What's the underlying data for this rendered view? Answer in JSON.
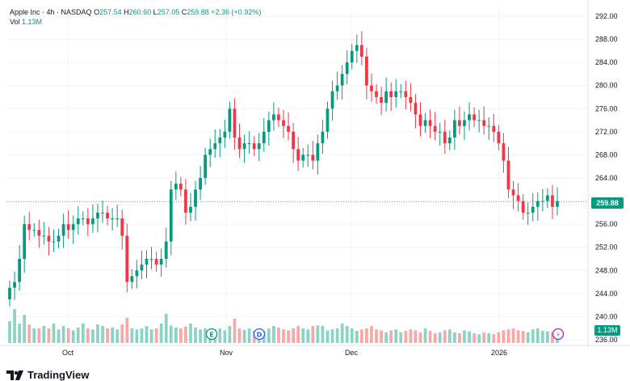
{
  "header": {
    "symbol_line": "Apple Inc · 4h · NASDAQ",
    "open_label": "O",
    "open": "257.54",
    "high_label": "H",
    "high": "260.60",
    "low_label": "L",
    "low": "257.05",
    "close_label": "C",
    "close": "259.88",
    "change": "+2.36 (+0.92%)",
    "vol_label": "Vol",
    "vol_value": "1.13M"
  },
  "price_tag": "259.88",
  "volume_tag": "1.13M",
  "brand": "TradingView",
  "colors": {
    "up": "#089981",
    "down": "#F23645",
    "grid": "#F0F3FA",
    "text": "#131722"
  },
  "event_markers": [
    {
      "letter": "E",
      "name": "earnings-marker-icon"
    },
    {
      "letter": "D",
      "name": "dividend-marker-icon"
    },
    {
      "letter": "⚡",
      "name": "news-flash-icon"
    }
  ],
  "chart_data": {
    "type": "candlestick",
    "title": "Apple Inc · 4h · NASDAQ",
    "y_range": [
      235,
      293
    ],
    "y_ticks": [
      "292.00",
      "288.00",
      "284.00",
      "280.00",
      "276.00",
      "272.00",
      "268.00",
      "264.00",
      "260.00",
      "256.00",
      "252.00",
      "248.00",
      "244.00",
      "240.00",
      "236.00"
    ],
    "x_labels": [
      "Oct",
      "Nov",
      "Dec",
      "2026"
    ],
    "last_price": 259.88,
    "closes": [
      245,
      246,
      250,
      256,
      255,
      255,
      254,
      254,
      253,
      253,
      254,
      256,
      255,
      256,
      257,
      257,
      256,
      257,
      258,
      258,
      257,
      257,
      257,
      254,
      246,
      247,
      248,
      249,
      250,
      250,
      249,
      250,
      253,
      262,
      263,
      262,
      258,
      259,
      262,
      264,
      268,
      269,
      270,
      271,
      272,
      276,
      271,
      269,
      270,
      270,
      269,
      270,
      272,
      274,
      275,
      274,
      273,
      272,
      269,
      267,
      268,
      268,
      267,
      270,
      272,
      276,
      279,
      280,
      282,
      284,
      286,
      287,
      285,
      280,
      279,
      278,
      277,
      279,
      278,
      279,
      279,
      278,
      277,
      275,
      273,
      274,
      273,
      272,
      272,
      270,
      271,
      274,
      273,
      274,
      275,
      274,
      274,
      273,
      273,
      272,
      270,
      267,
      262,
      261,
      260,
      258,
      258,
      259,
      260,
      260,
      261,
      259,
      260
    ],
    "volumes": [
      45,
      70,
      40,
      58,
      38,
      30,
      30,
      35,
      30,
      40,
      28,
      35,
      30,
      26,
      32,
      40,
      30,
      28,
      38,
      35,
      30,
      32,
      28,
      38,
      52,
      30,
      28,
      30,
      35,
      28,
      30,
      40,
      60,
      36,
      32,
      30,
      34,
      40,
      32,
      28,
      30,
      26,
      28,
      30,
      26,
      35,
      50,
      30,
      27,
      30,
      26,
      28,
      25,
      30,
      35,
      32,
      28,
      26,
      30,
      35,
      30,
      28,
      35,
      36,
      35,
      26,
      28,
      30,
      40,
      35,
      30,
      25,
      28,
      30,
      35,
      28,
      26,
      22,
      26,
      28,
      22,
      25,
      28,
      26,
      22,
      30,
      25,
      20,
      22,
      26,
      28,
      22,
      20,
      26,
      24,
      20,
      18,
      22,
      20,
      18,
      22,
      26,
      28,
      30,
      26,
      25,
      22,
      28,
      30,
      25,
      24,
      22,
      28
    ]
  }
}
